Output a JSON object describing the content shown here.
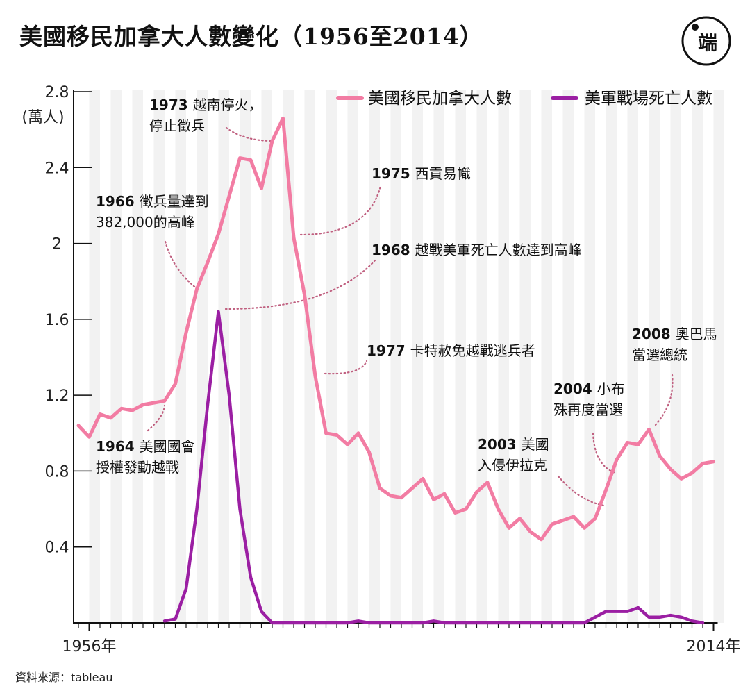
{
  "title": "美國移民加拿大人數變化（1956至2014）",
  "logo": {
    "icon": "theinitium-logo-icon",
    "glyph": "端"
  },
  "source": "資料來源：tableau",
  "colors": {
    "immigrants": "#f27ca3",
    "deaths": "#9b1fa3",
    "band": "#f2f2f2",
    "annotation": "#c06080"
  },
  "chart_data": {
    "type": "line",
    "yunit": "(萬人)",
    "ylim": [
      0,
      2.8
    ],
    "yticks": [
      0.4,
      0.8,
      1.2,
      1.6,
      2,
      2.4,
      2.8
    ],
    "ytick_labels": [
      "0.4",
      "0.8",
      "1.2",
      "1.6",
      "2",
      "2.4",
      "2.8"
    ],
    "x_range": [
      1956,
      2014
    ],
    "x_tick_labels": [
      {
        "year": 1956,
        "label": "1956年"
      },
      {
        "year": 2014,
        "label": "2014年"
      }
    ],
    "legend_position": "top-right",
    "grid": "alternating vertical bands",
    "series": [
      {
        "name": "美國移民加拿大人數",
        "color": "#f27ca3",
        "x": [
          1955,
          1956,
          1957,
          1958,
          1959,
          1960,
          1961,
          1962,
          1963,
          1964,
          1965,
          1966,
          1967,
          1968,
          1969,
          1970,
          1971,
          1972,
          1973,
          1974,
          1975,
          1976,
          1977,
          1978,
          1979,
          1980,
          1981,
          1982,
          1983,
          1984,
          1985,
          1986,
          1987,
          1988,
          1989,
          1990,
          1991,
          1992,
          1993,
          1994,
          1995,
          1996,
          1997,
          1998,
          1999,
          2000,
          2001,
          2002,
          2003,
          2004,
          2005,
          2006,
          2007,
          2008,
          2009,
          2010,
          2011,
          2012,
          2013,
          2014
        ],
        "values": [
          1.04,
          0.98,
          1.1,
          1.08,
          1.13,
          1.12,
          1.15,
          1.16,
          1.17,
          1.26,
          1.53,
          1.76,
          1.9,
          2.05,
          2.25,
          2.45,
          2.44,
          2.29,
          2.54,
          2.66,
          2.03,
          1.73,
          1.3,
          1.0,
          0.99,
          0.94,
          1.0,
          0.9,
          0.71,
          0.67,
          0.66,
          0.71,
          0.76,
          0.65,
          0.68,
          0.58,
          0.6,
          0.69,
          0.74,
          0.6,
          0.5,
          0.55,
          0.48,
          0.44,
          0.52,
          0.54,
          0.56,
          0.5,
          0.55,
          0.7,
          0.86,
          0.95,
          0.94,
          1.02,
          0.88,
          0.81,
          0.76,
          0.79,
          0.84,
          0.85
        ]
      },
      {
        "name": "美軍戰場死亡人數",
        "color": "#9b1fa3",
        "x": [
          1963,
          1964,
          1965,
          1966,
          1967,
          1968,
          1969,
          1970,
          1971,
          1972,
          1973,
          1980,
          1981,
          1982,
          1987,
          1988,
          1989,
          2001,
          2002,
          2003,
          2004,
          2005,
          2006,
          2007,
          2008,
          2009,
          2010,
          2011,
          2012,
          2013
        ],
        "values": [
          0.01,
          0.02,
          0.18,
          0.6,
          1.15,
          1.64,
          1.2,
          0.6,
          0.24,
          0.06,
          0.0,
          0.0,
          0.01,
          0.0,
          0.0,
          0.01,
          0.0,
          0.0,
          0.0,
          0.03,
          0.06,
          0.06,
          0.06,
          0.08,
          0.03,
          0.03,
          0.04,
          0.03,
          0.01,
          0.0
        ]
      }
    ],
    "annotations": [
      {
        "year_label": "1973",
        "text_lines": [
          "越南停火，",
          "停止徵兵"
        ]
      },
      {
        "year_label": "1975",
        "text_lines": [
          "西貢易幟"
        ]
      },
      {
        "year_label": "1966",
        "text_lines": [
          "徵兵量達到",
          "382,000的高峰"
        ]
      },
      {
        "year_label": "1968",
        "text_lines": [
          "越戰美軍死亡人數達到高峰"
        ]
      },
      {
        "year_label": "1977",
        "text_lines": [
          "卡特赦免越戰逃兵者"
        ]
      },
      {
        "year_label": "1964",
        "text_lines": [
          "美國國會",
          "授權發動越戰"
        ]
      },
      {
        "year_label": "2008",
        "text_lines": [
          "奧巴馬",
          "當選總統"
        ]
      },
      {
        "year_label": "2004",
        "text_lines": [
          "小布",
          "殊再度當選"
        ]
      },
      {
        "year_label": "2003",
        "text_lines": [
          "美國",
          "入侵伊拉克"
        ]
      }
    ]
  }
}
